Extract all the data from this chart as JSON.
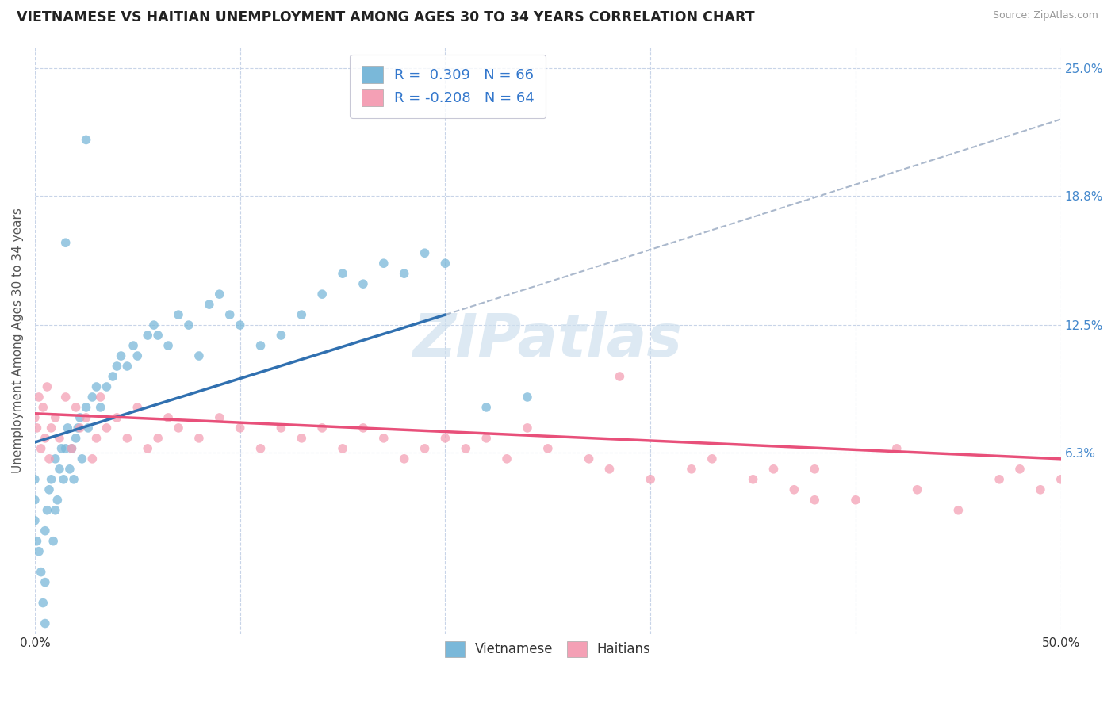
{
  "title": "VIETNAMESE VS HAITIAN UNEMPLOYMENT AMONG AGES 30 TO 34 YEARS CORRELATION CHART",
  "source": "Source: ZipAtlas.com",
  "ylabel": "Unemployment Among Ages 30 to 34 years",
  "xlim": [
    0.0,
    50.0
  ],
  "ylim": [
    -2.5,
    26.0
  ],
  "yticks_right": [
    6.3,
    12.5,
    18.8,
    25.0
  ],
  "ytick_labels_right": [
    "6.3%",
    "12.5%",
    "18.8%",
    "25.0%"
  ],
  "r_vietnamese": 0.309,
  "n_vietnamese": 66,
  "r_haitian": -0.208,
  "n_haitian": 64,
  "vietnamese_color": "#7ab8d9",
  "haitian_color": "#f4a0b5",
  "trend_vietnamese_color": "#3070b0",
  "trend_haitian_color": "#e8507a",
  "watermark_color": "#cfe0ee",
  "background_color": "#ffffff",
  "grid_color": "#c8d4e8",
  "vietnamese_x": [
    0.0,
    0.0,
    0.0,
    0.1,
    0.2,
    0.3,
    0.4,
    0.5,
    0.5,
    0.6,
    0.7,
    0.8,
    0.9,
    1.0,
    1.0,
    1.1,
    1.2,
    1.3,
    1.4,
    1.5,
    1.6,
    1.7,
    1.8,
    1.9,
    2.0,
    2.1,
    2.2,
    2.3,
    2.5,
    2.6,
    2.8,
    3.0,
    3.2,
    3.5,
    3.8,
    4.0,
    4.2,
    4.5,
    4.8,
    5.0,
    5.5,
    5.8,
    6.0,
    6.5,
    7.0,
    7.5,
    8.0,
    8.5,
    9.0,
    9.5,
    10.0,
    11.0,
    12.0,
    13.0,
    14.0,
    15.0,
    16.0,
    17.0,
    18.0,
    19.0,
    20.0,
    22.0,
    24.0,
    2.5,
    1.5,
    0.5
  ],
  "vietnamese_y": [
    5.0,
    4.0,
    3.0,
    2.0,
    1.5,
    0.5,
    -1.0,
    2.5,
    0.0,
    3.5,
    4.5,
    5.0,
    2.0,
    6.0,
    3.5,
    4.0,
    5.5,
    6.5,
    5.0,
    6.5,
    7.5,
    5.5,
    6.5,
    5.0,
    7.0,
    7.5,
    8.0,
    6.0,
    8.5,
    7.5,
    9.0,
    9.5,
    8.5,
    9.5,
    10.0,
    10.5,
    11.0,
    10.5,
    11.5,
    11.0,
    12.0,
    12.5,
    12.0,
    11.5,
    13.0,
    12.5,
    11.0,
    13.5,
    14.0,
    13.0,
    12.5,
    11.5,
    12.0,
    13.0,
    14.0,
    15.0,
    14.5,
    15.5,
    15.0,
    16.0,
    15.5,
    8.5,
    9.0,
    21.5,
    16.5,
    -2.0
  ],
  "haitian_x": [
    0.0,
    0.1,
    0.2,
    0.3,
    0.4,
    0.5,
    0.6,
    0.7,
    0.8,
    1.0,
    1.2,
    1.5,
    1.8,
    2.0,
    2.2,
    2.5,
    2.8,
    3.0,
    3.2,
    3.5,
    4.0,
    4.5,
    5.0,
    5.5,
    6.0,
    6.5,
    7.0,
    8.0,
    9.0,
    10.0,
    11.0,
    12.0,
    13.0,
    14.0,
    15.0,
    16.0,
    17.0,
    18.0,
    19.0,
    20.0,
    21.0,
    22.0,
    23.0,
    24.0,
    25.0,
    27.0,
    28.0,
    30.0,
    32.0,
    33.0,
    35.0,
    37.0,
    38.0,
    40.0,
    42.0,
    43.0,
    45.0,
    47.0,
    48.0,
    49.0,
    50.0,
    38.0,
    36.0,
    28.5
  ],
  "haitian_y": [
    8.0,
    7.5,
    9.0,
    6.5,
    8.5,
    7.0,
    9.5,
    6.0,
    7.5,
    8.0,
    7.0,
    9.0,
    6.5,
    8.5,
    7.5,
    8.0,
    6.0,
    7.0,
    9.0,
    7.5,
    8.0,
    7.0,
    8.5,
    6.5,
    7.0,
    8.0,
    7.5,
    7.0,
    8.0,
    7.5,
    6.5,
    7.5,
    7.0,
    7.5,
    6.5,
    7.5,
    7.0,
    6.0,
    6.5,
    7.0,
    6.5,
    7.0,
    6.0,
    7.5,
    6.5,
    6.0,
    5.5,
    5.0,
    5.5,
    6.0,
    5.0,
    4.5,
    5.5,
    4.0,
    6.5,
    4.5,
    3.5,
    5.0,
    5.5,
    4.5,
    5.0,
    4.0,
    5.5,
    10.0
  ],
  "viet_trend_x0": 0.0,
  "viet_trend_y0": 6.8,
  "viet_trend_x1": 20.0,
  "viet_trend_y1": 13.0,
  "hait_trend_x0": 0.0,
  "hait_trend_y0": 8.2,
  "hait_trend_x1": 50.0,
  "hait_trend_y1": 6.0,
  "dash_x0": 20.0,
  "dash_y0": 13.0,
  "dash_x1": 50.0,
  "dash_y1": 22.5
}
